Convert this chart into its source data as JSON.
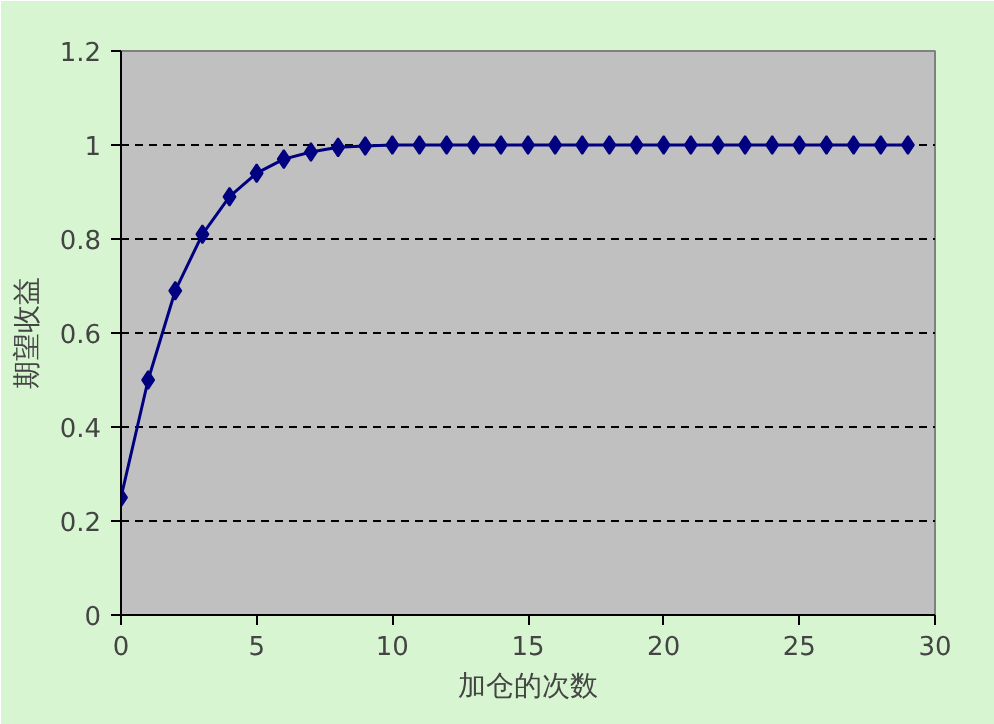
{
  "chart_data": {
    "type": "line",
    "xlabel": "加仓的次数",
    "ylabel": "期望收益",
    "x": [
      0,
      1,
      2,
      3,
      4,
      5,
      6,
      7,
      8,
      9,
      10,
      11,
      12,
      13,
      14,
      15,
      16,
      17,
      18,
      19,
      20,
      21,
      22,
      23,
      24,
      25,
      26,
      27,
      28,
      29
    ],
    "series": [
      {
        "color": "#000080",
        "values": [
          0.25,
          0.5,
          0.69,
          0.81,
          0.89,
          0.94,
          0.97,
          0.985,
          0.995,
          0.998,
          1,
          1,
          1,
          1,
          1,
          1,
          1,
          1,
          1,
          1,
          1,
          1,
          1,
          1,
          1,
          1,
          1,
          1,
          1,
          1
        ]
      }
    ],
    "xlim": [
      0,
      30
    ],
    "ylim": [
      0,
      1.2
    ],
    "xticks": [
      0,
      5,
      10,
      15,
      20,
      25,
      30
    ],
    "yticks": [
      0,
      0.2,
      0.4,
      0.6,
      0.8,
      1,
      1.2
    ],
    "grid": "y",
    "marker": "diamond",
    "line_style": "solid"
  }
}
